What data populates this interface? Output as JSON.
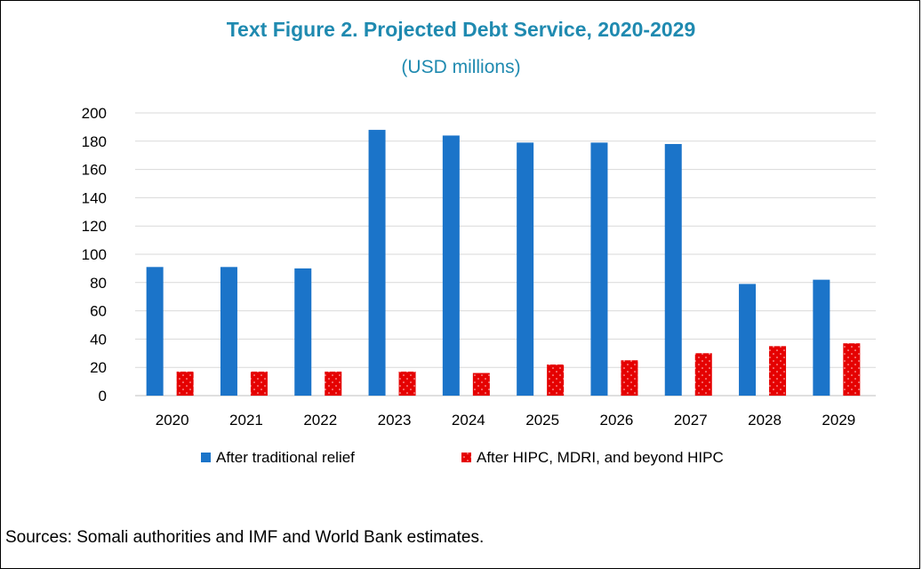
{
  "title": "Text Figure 2. Projected Debt Service, 2020-2029",
  "subtitle": "(USD millions)",
  "source": "Sources: Somali authorities and IMF and World Bank estimates.",
  "colors": {
    "series1": "#1b74c9",
    "series2": "#e50000",
    "title": "#1f8ab0",
    "grid": "#d9d9d9"
  },
  "chart_data": {
    "type": "bar",
    "title": "Text Figure 2. Projected Debt Service, 2020-2029",
    "subtitle": "(USD millions)",
    "categories": [
      "2020",
      "2021",
      "2022",
      "2023",
      "2024",
      "2025",
      "2026",
      "2027",
      "2028",
      "2029"
    ],
    "series": [
      {
        "name": "After traditional relief",
        "color": "#1b74c9",
        "values": [
          91,
          91,
          90,
          188,
          184,
          179,
          179,
          178,
          79,
          82
        ]
      },
      {
        "name": "After HIPC, MDRI, and beyond HIPC",
        "color": "#e50000",
        "values": [
          17,
          17,
          17,
          17,
          16,
          22,
          25,
          30,
          35,
          37
        ]
      }
    ],
    "yticks": [
      0,
      20,
      40,
      60,
      80,
      100,
      120,
      140,
      160,
      180,
      200
    ],
    "ylim": [
      0,
      200
    ],
    "grid": true,
    "legend": "bottom"
  }
}
